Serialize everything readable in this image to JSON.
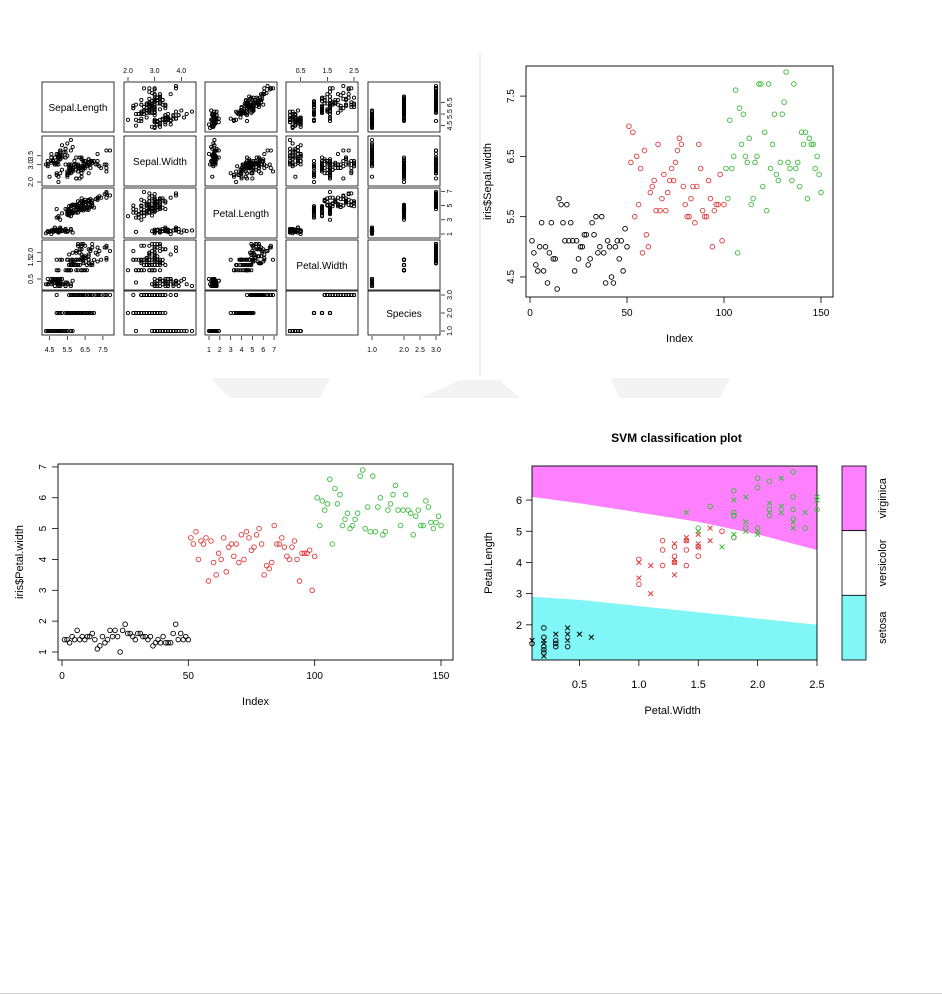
{
  "chart_data": [
    {
      "type": "scatter",
      "subtype": "scatterplot-matrix",
      "variables": [
        "Sepal.Length",
        "Sepal.Width",
        "Petal.Length",
        "Petal.Width",
        "Species"
      ],
      "ranges": [
        [
          4.3,
          7.9
        ],
        [
          2.0,
          4.4
        ],
        [
          1.0,
          6.9
        ],
        [
          0.1,
          2.5
        ],
        [
          1,
          3
        ]
      ],
      "axis_ticks": {
        "top": {
          "Sepal.Width": [
            "2.0",
            "3.0",
            "4.0"
          ],
          "Petal.Width": [
            "0.5",
            "1.5",
            "2.5"
          ]
        },
        "bottom": {
          "Sepal.Length": [
            "4.5",
            "5.5",
            "6.5",
            "7.5"
          ],
          "Petal.Length": [
            "1",
            "2",
            "3",
            "4",
            "5",
            "6",
            "7"
          ],
          "Species": [
            "1.0",
            "2.0",
            "2.5",
            "3.0"
          ]
        },
        "left": {
          "Sepal.Width": [
            "2.0",
            "3.0",
            "3.5"
          ],
          "Petal.Width": [
            "0.5",
            "1.5",
            "2.0"
          ]
        },
        "right": {
          "Sepal.Length": [
            "4.5",
            "5.5",
            "6.5"
          ],
          "Petal.Length": [
            "1",
            "3",
            "5",
            "7"
          ],
          "Species": [
            "1.0",
            "2.0",
            "3.0"
          ]
        }
      },
      "values_per_species": 50,
      "grid": false
    },
    {
      "type": "scatter",
      "xlabel": "Index",
      "ylabel": "iris$Sepal.width",
      "xlim": [
        0,
        150
      ],
      "ylim": [
        4.3,
        7.9
      ],
      "xticks": [
        "0",
        "50",
        "100",
        "150"
      ],
      "yticks": [
        "4.5",
        "5.5",
        "6.5",
        "7.5"
      ],
      "series": [
        {
          "values": [
            5.1,
            4.9,
            4.7,
            4.6,
            5.0,
            5.4,
            4.6,
            5.0,
            4.4,
            4.9,
            5.4,
            4.8,
            4.8,
            4.3,
            5.8,
            5.7,
            5.4,
            5.1,
            5.7,
            5.1,
            5.4,
            5.1,
            4.6,
            5.1,
            4.8,
            5.0,
            5.0,
            5.2,
            5.2,
            4.7,
            4.8,
            5.4,
            5.2,
            5.5,
            4.9,
            5.0,
            5.5,
            4.9,
            4.4,
            5.1,
            5.0,
            4.5,
            4.4,
            5.0,
            5.1,
            4.8,
            5.1,
            4.6,
            5.3,
            5.0
          ],
          "color": "#000000"
        },
        {
          "values": [
            7.0,
            6.4,
            6.9,
            5.5,
            6.5,
            5.7,
            6.3,
            4.9,
            6.6,
            5.2,
            5.0,
            5.9,
            6.0,
            6.1,
            5.6,
            6.7,
            5.6,
            5.8,
            6.2,
            5.6,
            5.9,
            6.1,
            6.3,
            6.1,
            6.4,
            6.6,
            6.8,
            6.7,
            6.0,
            5.7,
            5.5,
            5.5,
            5.8,
            6.0,
            5.4,
            6.0,
            6.7,
            6.3,
            5.6,
            5.5,
            5.5,
            6.1,
            5.8,
            5.0,
            5.6,
            5.7,
            5.7,
            6.2,
            5.1,
            5.7
          ],
          "color": "#df3b3b"
        },
        {
          "values": [
            6.3,
            5.8,
            7.1,
            6.3,
            6.5,
            7.6,
            4.9,
            7.3,
            6.7,
            7.2,
            6.5,
            6.4,
            6.8,
            5.7,
            5.8,
            6.4,
            6.5,
            7.7,
            7.7,
            6.0,
            6.9,
            5.6,
            7.7,
            6.3,
            6.7,
            7.2,
            6.2,
            6.1,
            6.4,
            7.2,
            7.4,
            7.9,
            6.4,
            6.3,
            6.1,
            7.7,
            6.3,
            6.4,
            6.0,
            6.9,
            6.7,
            6.9,
            5.8,
            6.8,
            6.7,
            6.7,
            6.3,
            6.5,
            6.2,
            5.9
          ],
          "color": "#3bbb3b"
        }
      ],
      "grid": false
    },
    {
      "type": "scatter",
      "xlabel": "Index",
      "ylabel": "iris$Petal.width",
      "xlim": [
        0,
        150
      ],
      "ylim": [
        1.0,
        6.9
      ],
      "xticks": [
        "0",
        "50",
        "100",
        "150"
      ],
      "yticks": [
        "1",
        "2",
        "3",
        "4",
        "5",
        "6",
        "7"
      ],
      "series": [
        {
          "values": [
            1.4,
            1.4,
            1.3,
            1.5,
            1.4,
            1.7,
            1.4,
            1.5,
            1.4,
            1.5,
            1.5,
            1.6,
            1.4,
            1.1,
            1.2,
            1.5,
            1.3,
            1.4,
            1.7,
            1.5,
            1.7,
            1.5,
            1.0,
            1.7,
            1.9,
            1.6,
            1.6,
            1.5,
            1.4,
            1.6,
            1.6,
            1.5,
            1.5,
            1.4,
            1.5,
            1.2,
            1.3,
            1.4,
            1.3,
            1.5,
            1.3,
            1.3,
            1.3,
            1.6,
            1.9,
            1.4,
            1.6,
            1.4,
            1.5,
            1.4
          ],
          "color": "#000000"
        },
        {
          "values": [
            4.7,
            4.5,
            4.9,
            4.0,
            4.6,
            4.5,
            4.7,
            3.3,
            4.6,
            3.9,
            3.5,
            4.2,
            4.0,
            4.7,
            3.6,
            4.4,
            4.5,
            4.1,
            4.5,
            3.9,
            4.8,
            4.0,
            4.9,
            4.7,
            4.3,
            4.4,
            4.8,
            5.0,
            4.5,
            3.5,
            3.8,
            3.7,
            3.9,
            5.1,
            4.5,
            4.5,
            4.7,
            4.4,
            4.1,
            4.0,
            4.4,
            4.6,
            4.0,
            3.3,
            4.2,
            4.2,
            4.2,
            4.3,
            3.0,
            4.1
          ],
          "color": "#df3b3b"
        },
        {
          "values": [
            6.0,
            5.1,
            5.9,
            5.6,
            5.8,
            6.6,
            4.5,
            6.3,
            5.8,
            6.1,
            5.1,
            5.3,
            5.5,
            5.0,
            5.1,
            5.3,
            5.5,
            6.7,
            6.9,
            5.0,
            5.7,
            4.9,
            6.7,
            4.9,
            5.7,
            6.0,
            4.8,
            4.9,
            5.6,
            5.8,
            6.1,
            6.4,
            5.6,
            5.1,
            5.6,
            6.1,
            5.6,
            5.5,
            4.8,
            5.4,
            5.6,
            5.1,
            5.1,
            5.9,
            5.7,
            5.2,
            5.0,
            5.2,
            5.4,
            5.1
          ],
          "color": "#3bbb3b"
        }
      ],
      "grid": false
    },
    {
      "type": "scatter",
      "subtype": "svm-classification-plot",
      "title": "SVM classification plot",
      "xlabel": "Petal.Width",
      "ylabel": "Petal.Length",
      "xlim": [
        0.1,
        2.5
      ],
      "ylim": [
        1.0,
        6.9
      ],
      "xticks": [
        "0.5",
        "1.0",
        "1.5",
        "2.0",
        "2.5"
      ],
      "yticks": [
        "2",
        "3",
        "4",
        "5",
        "6"
      ],
      "legend_labels": [
        "setosa",
        "versicolor",
        "virginica"
      ],
      "legend_colors": [
        "#80f6f6",
        "#ffffff",
        "#ff80ff"
      ],
      "legend_position": "right",
      "region_colors": {
        "setosa": "#80f6f6",
        "versicolor": "#ffffff",
        "virginica": "#ff80ff"
      },
      "boundary_setosa_versicolor": [
        [
          0.1,
          2.9
        ],
        [
          0.5,
          2.8
        ],
        [
          1.0,
          2.6
        ],
        [
          1.5,
          2.4
        ],
        [
          2.0,
          2.2
        ],
        [
          2.5,
          2.0
        ]
      ],
      "boundary_versicolor_virginica": [
        [
          0.1,
          6.1
        ],
        [
          0.5,
          5.9
        ],
        [
          1.0,
          5.6
        ],
        [
          1.5,
          5.3
        ],
        [
          2.0,
          4.9
        ],
        [
          2.5,
          4.4
        ]
      ],
      "point_markers": {
        "support_vector": "x",
        "other": "o"
      },
      "series": [
        {
          "name": "setosa",
          "color": "#000000",
          "points": [
            [
              0.2,
              1.4
            ],
            [
              0.2,
              1.3
            ],
            [
              0.2,
              1.5
            ],
            [
              0.2,
              1.6
            ],
            [
              0.4,
              1.7
            ],
            [
              0.3,
              1.4
            ],
            [
              0.1,
              1.5
            ],
            [
              0.2,
              1.2
            ],
            [
              0.4,
              1.5
            ],
            [
              0.4,
              1.3
            ],
            [
              0.3,
              1.7
            ],
            [
              0.2,
              1.1
            ],
            [
              0.5,
              1.7
            ],
            [
              0.2,
              1.9
            ],
            [
              0.4,
              1.9
            ],
            [
              0.3,
              1.3
            ],
            [
              0.6,
              1.6
            ],
            [
              0.1,
              1.4
            ],
            [
              0.2,
              1.0
            ],
            [
              0.3,
              1.5
            ]
          ]
        },
        {
          "name": "versicolor",
          "color": "#df3b3b",
          "points": [
            [
              1.4,
              4.7
            ],
            [
              1.5,
              4.5
            ],
            [
              1.5,
              4.9
            ],
            [
              1.3,
              4.0
            ],
            [
              1.5,
              4.6
            ],
            [
              1.3,
              4.5
            ],
            [
              1.6,
              4.7
            ],
            [
              1.0,
              3.3
            ],
            [
              1.3,
              4.6
            ],
            [
              1.4,
              3.9
            ],
            [
              1.0,
              3.5
            ],
            [
              1.5,
              4.2
            ],
            [
              1.0,
              4.0
            ],
            [
              1.4,
              4.7
            ],
            [
              1.3,
              3.6
            ],
            [
              1.4,
              4.4
            ],
            [
              1.5,
              4.5
            ],
            [
              1.0,
              4.1
            ],
            [
              1.1,
              3.9
            ],
            [
              1.8,
              4.8
            ],
            [
              1.3,
              4.0
            ],
            [
              1.2,
              4.7
            ],
            [
              1.4,
              4.8
            ],
            [
              1.7,
              5.0
            ],
            [
              1.1,
              3.0
            ],
            [
              1.2,
              3.9
            ],
            [
              1.6,
              5.1
            ],
            [
              1.2,
              4.4
            ],
            [
              1.3,
              4.1
            ],
            [
              1.3,
              4.2
            ]
          ]
        },
        {
          "name": "virginica",
          "color": "#3bbb3b",
          "points": [
            [
              2.5,
              6.0
            ],
            [
              1.9,
              5.1
            ],
            [
              2.1,
              5.9
            ],
            [
              1.8,
              5.6
            ],
            [
              2.2,
              5.8
            ],
            [
              2.1,
              6.6
            ],
            [
              1.7,
              4.5
            ],
            [
              1.8,
              6.3
            ],
            [
              2.5,
              6.1
            ],
            [
              2.0,
              5.1
            ],
            [
              1.9,
              5.3
            ],
            [
              2.1,
              5.5
            ],
            [
              2.0,
              5.0
            ],
            [
              2.4,
              5.1
            ],
            [
              2.3,
              5.3
            ],
            [
              1.8,
              5.5
            ],
            [
              2.2,
              6.7
            ],
            [
              2.3,
              6.9
            ],
            [
              1.5,
              5.0
            ],
            [
              2.3,
              5.7
            ],
            [
              2.0,
              4.9
            ],
            [
              2.0,
              6.7
            ],
            [
              1.8,
              4.9
            ],
            [
              2.1,
              5.7
            ],
            [
              1.8,
              6.0
            ],
            [
              1.8,
              4.8
            ],
            [
              2.1,
              5.6
            ],
            [
              1.6,
              5.8
            ],
            [
              1.9,
              6.1
            ],
            [
              2.0,
              6.4
            ],
            [
              2.2,
              5.6
            ],
            [
              1.5,
              5.1
            ],
            [
              1.4,
              5.6
            ],
            [
              2.3,
              6.1
            ],
            [
              2.4,
              5.6
            ],
            [
              1.8,
              5.5
            ],
            [
              2.3,
              5.1
            ],
            [
              2.5,
              5.7
            ],
            [
              1.9,
              5.0
            ],
            [
              2.3,
              5.4
            ]
          ]
        }
      ],
      "grid": false
    }
  ]
}
